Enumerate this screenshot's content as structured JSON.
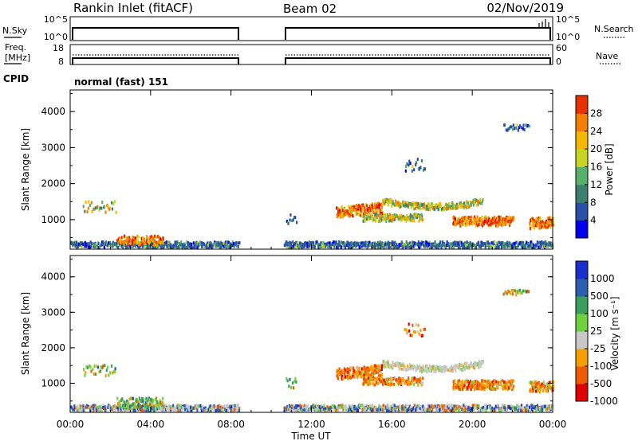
{
  "header": {
    "station": "Rankin Inlet (fitACF)",
    "beam": "Beam 02",
    "date": "02/Nov/2019"
  },
  "status_panel": {
    "nsky_label": "N.Sky",
    "nsky_ticks": [
      "10^5",
      "10^0"
    ],
    "nsearch_label": "N.Search",
    "nsearch_ticks": [
      "10^5",
      "10^0"
    ],
    "freq_label_line1": "Freq.",
    "freq_label_line2": "[MHz]",
    "freq_ticks": [
      "18",
      "8"
    ],
    "nave_label": "Nave",
    "nave_ticks": [
      "60",
      "0"
    ],
    "cpid_label": "CPID",
    "cpid_value": "normal (fast) 151"
  },
  "colors": {
    "power_scale": [
      "#0000ee",
      "#2a4fa8",
      "#3b7f6e",
      "#58b06a",
      "#c8d520",
      "#f5b800",
      "#f57f00",
      "#e83000",
      "#d00000"
    ],
    "velocity_scale": [
      "#e00000",
      "#f05a00",
      "#f5a000",
      "#c8c8c8",
      "#6fd040",
      "#3a9f5a",
      "#2a5faf",
      "#1a2fcf"
    ]
  },
  "chart_data": [
    {
      "type": "heatmap",
      "name": "power",
      "ylabel": "Slant Range [km]",
      "yticks": [
        "4000",
        "3000",
        "2000",
        "1000"
      ],
      "ylim": [
        180,
        4600
      ],
      "xlim": [
        "00:00",
        "24:00"
      ],
      "colorbar_label": "Power [dB]",
      "colorbar_ticks": [
        "28",
        "24",
        "20",
        "16",
        "12",
        "8",
        "4"
      ],
      "colorbar_range": [
        0,
        32
      ]
    },
    {
      "type": "heatmap",
      "name": "velocity",
      "ylabel": "Slant Range [km]",
      "yticks": [
        "4000",
        "3000",
        "2000",
        "1000"
      ],
      "ylim": [
        180,
        4600
      ],
      "xlim": [
        "00:00",
        "24:00"
      ],
      "xlabel": "Time UT",
      "xticks": [
        "00:00",
        "04:00",
        "08:00",
        "12:00",
        "16:00",
        "20:00",
        "00:00"
      ],
      "colorbar_label": "Velocity [m s⁻¹]",
      "colorbar_ticks": [
        "1000",
        "500",
        "100",
        "25",
        "-25",
        "-100",
        "-500",
        "-1000"
      ]
    }
  ]
}
